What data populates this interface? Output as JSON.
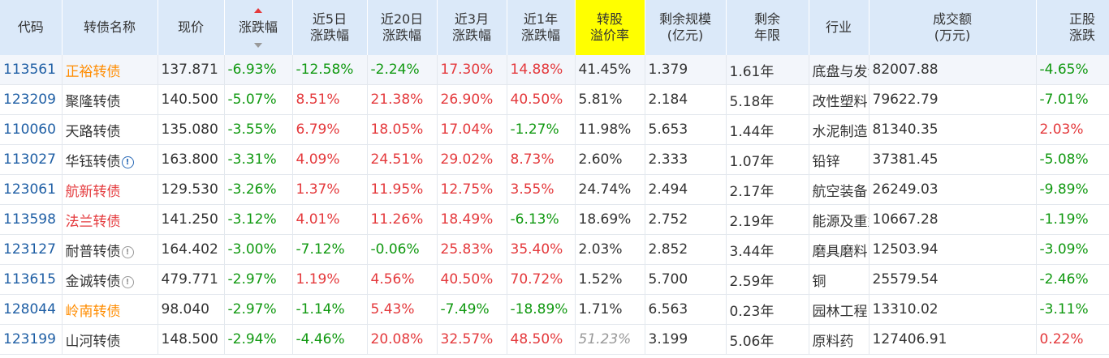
{
  "headers": {
    "code": "代码",
    "name": "转债名称",
    "price": "现价",
    "change": "涨跌幅",
    "change5d_1": "近5日",
    "change5d_2": "涨跌幅",
    "change20d_1": "近20日",
    "change20d_2": "涨跌幅",
    "change3m_1": "近3月",
    "change3m_2": "涨跌幅",
    "change1y_1": "近1年",
    "change1y_2": "涨跌幅",
    "premium_1": "转股",
    "premium_2": "溢价率",
    "scale_1": "剩余规模",
    "scale_2": "(亿元)",
    "remaining_1": "剩余",
    "remaining_2": "年限",
    "industry": "行业",
    "volume_1": "成交额",
    "volume_2": "(万元)",
    "stock_1": "正股",
    "stock_2": "涨跌"
  },
  "rows": [
    {
      "code": "113561",
      "name": "正裕转债",
      "price": "137.871",
      "change": "-6.93%",
      "c5": "-12.58%",
      "c20": "-2.24%",
      "c3m": "17.30%",
      "c1y": "14.88%",
      "premium": "41.45%",
      "scale": "1.379",
      "years": "1.61年",
      "industry": "底盘与发动机系统",
      "volume": "82007.88",
      "stock": "-4.65%"
    },
    {
      "code": "123209",
      "name": "聚隆转债",
      "price": "140.500",
      "change": "-5.07%",
      "c5": "8.51%",
      "c20": "21.38%",
      "c3m": "26.90%",
      "c1y": "40.50%",
      "premium": "5.81%",
      "scale": "2.184",
      "years": "5.18年",
      "industry": "改性塑料",
      "volume": "79622.79",
      "stock": "-7.01%"
    },
    {
      "code": "110060",
      "name": "天路转债",
      "price": "135.080",
      "change": "-3.55%",
      "c5": "6.79%",
      "c20": "18.05%",
      "c3m": "17.04%",
      "c1y": "-1.27%",
      "premium": "11.98%",
      "scale": "5.653",
      "years": "1.44年",
      "industry": "水泥制造",
      "volume": "81340.35",
      "stock": "2.03%"
    },
    {
      "code": "113027",
      "name": "华钰转债",
      "price": "163.800",
      "change": "-3.31%",
      "c5": "4.09%",
      "c20": "24.51%",
      "c3m": "29.02%",
      "c1y": "8.73%",
      "premium": "2.60%",
      "scale": "2.333",
      "years": "1.07年",
      "industry": "铅锌",
      "volume": "37381.45",
      "stock": "-5.08%"
    },
    {
      "code": "123061",
      "name": "航新转债",
      "price": "129.530",
      "change": "-3.26%",
      "c5": "1.37%",
      "c20": "11.95%",
      "c3m": "12.75%",
      "c1y": "3.55%",
      "premium": "24.74%",
      "scale": "2.494",
      "years": "2.17年",
      "industry": "航空装备",
      "volume": "26249.03",
      "stock": "-9.89%"
    },
    {
      "code": "113598",
      "name": "法兰转债",
      "price": "141.250",
      "change": "-3.12%",
      "c5": "4.01%",
      "c20": "11.26%",
      "c3m": "18.49%",
      "c1y": "-6.13%",
      "premium": "18.69%",
      "scale": "2.752",
      "years": "2.19年",
      "industry": "能源及重型设备",
      "volume": "10667.28",
      "stock": "-1.19%"
    },
    {
      "code": "123127",
      "name": "耐普转债",
      "price": "164.402",
      "change": "-3.00%",
      "c5": "-7.12%",
      "c20": "-0.06%",
      "c3m": "25.83%",
      "c1y": "35.40%",
      "premium": "2.03%",
      "scale": "2.852",
      "years": "3.44年",
      "industry": "磨具磨料",
      "volume": "12503.94",
      "stock": "-3.09%"
    },
    {
      "code": "113615",
      "name": "金诚转债",
      "price": "479.771",
      "change": "-2.97%",
      "c5": "1.19%",
      "c20": "4.56%",
      "c3m": "40.50%",
      "c1y": "70.72%",
      "premium": "1.52%",
      "scale": "5.700",
      "years": "2.59年",
      "industry": "铜",
      "volume": "25579.54",
      "stock": "-2.46%"
    },
    {
      "code": "128044",
      "name": "岭南转债",
      "price": "98.040",
      "change": "-2.97%",
      "c5": "-1.14%",
      "c20": "5.43%",
      "c3m": "-7.49%",
      "c1y": "-18.89%",
      "premium": "1.71%",
      "scale": "6.563",
      "years": "0.23年",
      "industry": "园林工程",
      "volume": "13310.02",
      "stock": "-3.11%"
    },
    {
      "code": "123199",
      "name": "山河转债",
      "price": "148.500",
      "change": "-2.94%",
      "c5": "-4.46%",
      "c20": "20.08%",
      "c3m": "32.57%",
      "c1y": "48.50%",
      "premium": "51.23%",
      "scale": "3.199",
      "years": "5.06年",
      "industry": "原料药",
      "volume": "127406.91",
      "stock": "0.22%"
    }
  ],
  "info_icon_glyph": "!"
}
